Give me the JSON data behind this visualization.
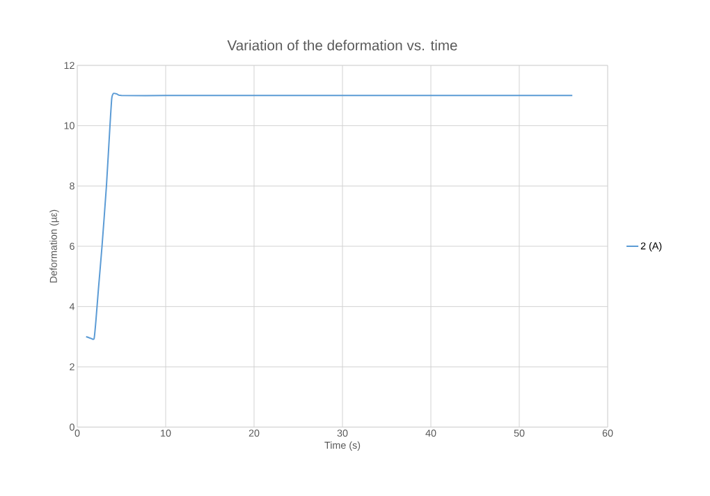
{
  "chart_data": {
    "type": "line",
    "title": "Variation of the deformation vs. time",
    "xlabel": "Time (s)",
    "ylabel": "Deformation (µε)",
    "series": [
      {
        "name": "2 (A)",
        "color": "#5b9bd5",
        "x": [
          1,
          1.5,
          1.9,
          2.1,
          2.4,
          2.8,
          3.3,
          3.7,
          3.9,
          4.1,
          4.5,
          5,
          10,
          20,
          30,
          40,
          50,
          56
        ],
        "values": [
          3,
          2.95,
          2.93,
          3.5,
          4.6,
          6,
          8,
          10,
          10.9,
          11.07,
          11.05,
          11,
          11,
          11,
          11,
          11,
          11,
          11
        ]
      }
    ],
    "xlim": [
      0,
      60
    ],
    "ylim": [
      0,
      12
    ],
    "xticks": [
      0,
      10,
      20,
      30,
      40,
      50,
      60
    ],
    "yticks": [
      0,
      2,
      4,
      6,
      8,
      10,
      12
    ],
    "grid": true,
    "legend": "right",
    "marker": "none",
    "line_style": "solid"
  }
}
